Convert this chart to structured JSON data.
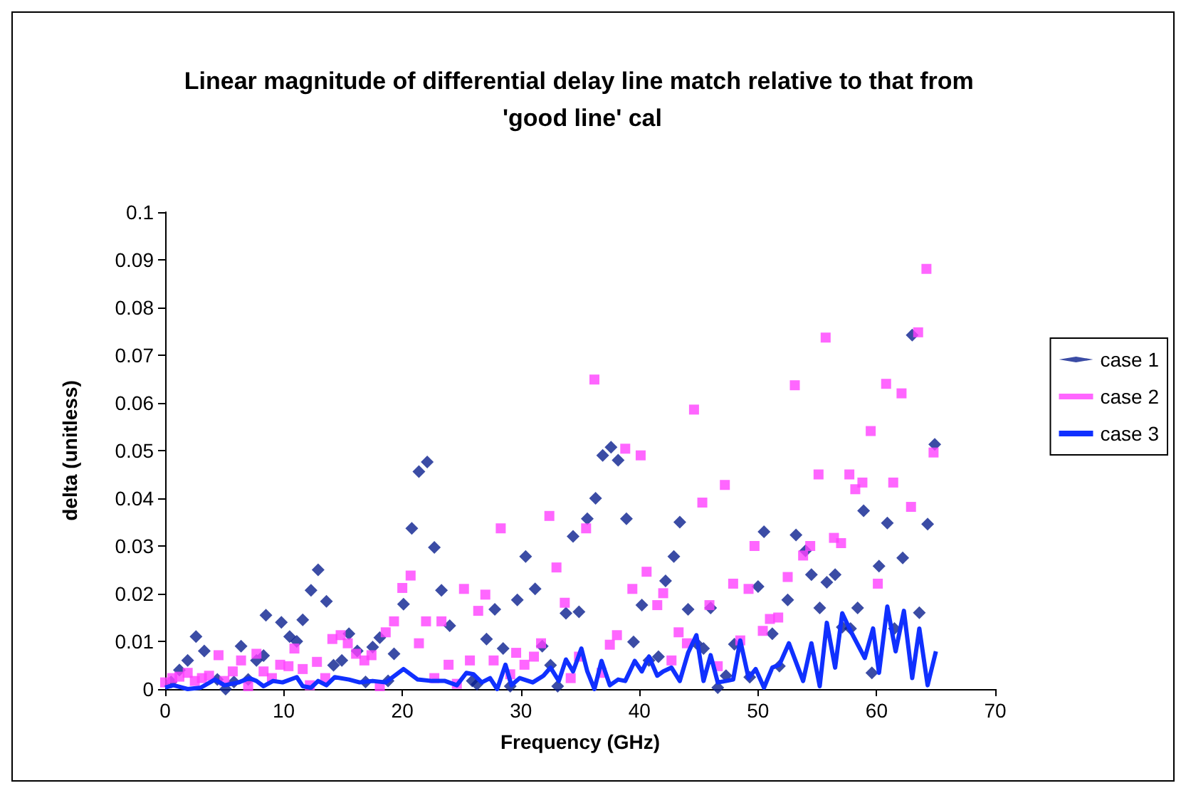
{
  "chart_data": {
    "type": "scatter",
    "title": "Linear magnitude of differential delay line match relative to that from 'good line' cal",
    "xlabel": "Frequency (GHz)",
    "ylabel": "delta (unitless)",
    "xlim": [
      0,
      70
    ],
    "xticks": [
      0,
      10,
      20,
      30,
      40,
      50,
      60,
      70
    ],
    "ylim": [
      0,
      0.1
    ],
    "yticks": [
      0,
      0.01,
      0.02,
      0.03,
      0.04,
      0.05,
      0.06,
      0.07,
      0.08,
      0.09,
      0.1
    ],
    "grid": false,
    "legend": "right",
    "series": [
      {
        "name": "case 1",
        "marker": "diamond",
        "color": "#0a1f8f",
        "x": [
          0.5,
          1.2,
          1.9,
          2.6,
          3.3,
          4.4,
          5.1,
          5.8,
          6.4,
          7.0,
          7.7,
          8.3,
          8.5,
          9.8,
          10.5,
          11.1,
          11.6,
          12.3,
          12.9,
          13.6,
          14.2,
          14.9,
          15.5,
          16.2,
          16.9,
          17.5,
          18.1,
          18.8,
          19.3,
          20.1,
          20.8,
          21.4,
          22.1,
          22.7,
          23.3,
          24.0,
          25.9,
          26.3,
          27.1,
          27.8,
          28.5,
          29.1,
          29.7,
          30.4,
          31.2,
          31.8,
          32.5,
          33.1,
          33.8,
          34.4,
          34.9,
          35.6,
          36.3,
          36.9,
          37.6,
          38.2,
          38.9,
          39.5,
          40.2,
          40.8,
          41.6,
          42.2,
          42.9,
          43.4,
          44.1,
          44.8,
          45.4,
          46.0,
          46.6,
          47.3,
          48.0,
          49.3,
          50.0,
          50.5,
          51.2,
          51.8,
          52.5,
          53.2,
          54.0,
          54.5,
          55.2,
          55.8,
          56.5,
          57.1,
          57.8,
          58.4,
          58.9,
          59.6,
          60.2,
          60.9,
          61.5,
          62.2,
          63.0,
          63.6,
          64.3,
          64.9
        ],
        "values": [
          0.0015,
          0.004,
          0.006,
          0.011,
          0.008,
          0.002,
          0.0,
          0.0015,
          0.009,
          0.002,
          0.006,
          0.007,
          0.0155,
          0.014,
          0.011,
          0.01,
          0.0145,
          0.0207,
          0.025,
          0.0184,
          0.005,
          0.006,
          0.0116,
          0.008,
          0.0015,
          0.0088,
          0.0108,
          0.0017,
          0.0074,
          0.0178,
          0.0337,
          0.0456,
          0.0476,
          0.0297,
          0.0207,
          0.0133,
          0.0017,
          0.001,
          0.0105,
          0.0167,
          0.0085,
          0.0006,
          0.0187,
          0.0278,
          0.021,
          0.009,
          0.005,
          0.0006,
          0.0159,
          0.032,
          0.0162,
          0.0357,
          0.04,
          0.049,
          0.0507,
          0.048,
          0.0357,
          0.0099,
          0.0176,
          0.006,
          0.0068,
          0.0227,
          0.0278,
          0.035,
          0.0167,
          0.0096,
          0.0085,
          0.017,
          0.0003,
          0.0028,
          0.0094,
          0.0025,
          0.0215,
          0.033,
          0.0116,
          0.0048,
          0.0187,
          0.0323,
          0.029,
          0.024,
          0.017,
          0.0224,
          0.024,
          0.013,
          0.0127,
          0.017,
          0.0374,
          0.0034,
          0.0258,
          0.0348,
          0.0127,
          0.0275,
          0.0742,
          0.016,
          0.0346,
          0.0513
        ]
      },
      {
        "name": "case 2",
        "marker": "square",
        "color": "#ff40ff",
        "x": [
          0.0,
          0.6,
          1.2,
          1.9,
          2.5,
          3.1,
          3.7,
          4.5,
          5.0,
          5.7,
          6.4,
          7.0,
          7.7,
          8.3,
          9.0,
          9.7,
          10.4,
          10.9,
          11.6,
          12.2,
          12.8,
          13.5,
          14.1,
          14.8,
          15.4,
          16.1,
          16.8,
          17.4,
          18.1,
          18.6,
          19.3,
          20.0,
          20.7,
          21.4,
          22.0,
          22.7,
          23.3,
          23.9,
          24.6,
          25.2,
          25.7,
          26.4,
          27.0,
          27.7,
          28.3,
          29.1,
          29.6,
          30.3,
          31.1,
          31.7,
          32.4,
          33.0,
          33.7,
          34.2,
          34.9,
          35.5,
          36.2,
          36.8,
          37.5,
          38.1,
          38.8,
          39.4,
          40.1,
          40.6,
          41.5,
          42.0,
          42.7,
          43.3,
          44.0,
          44.6,
          45.3,
          45.9,
          46.6,
          47.2,
          47.9,
          48.5,
          49.2,
          49.7,
          50.4,
          51.0,
          51.7,
          52.5,
          53.1,
          53.8,
          54.4,
          55.1,
          55.7,
          56.4,
          57.0,
          57.7,
          58.2,
          58.8,
          59.5,
          60.1,
          60.8,
          61.4,
          62.1,
          62.9,
          63.5,
          64.2,
          64.8
        ],
        "values": [
          0.0014,
          0.0023,
          0.0026,
          0.0034,
          0.0017,
          0.0023,
          0.0028,
          0.0071,
          0.0017,
          0.0037,
          0.006,
          0.0006,
          0.0074,
          0.0037,
          0.0023,
          0.0051,
          0.0048,
          0.0085,
          0.0042,
          0.0008,
          0.0057,
          0.0023,
          0.0105,
          0.0113,
          0.0096,
          0.0074,
          0.006,
          0.0071,
          0.0006,
          0.0119,
          0.0142,
          0.0212,
          0.0238,
          0.0096,
          0.0142,
          0.0023,
          0.0142,
          0.0051,
          0.0011,
          0.021,
          0.006,
          0.0164,
          0.0198,
          0.006,
          0.0337,
          0.0031,
          0.0076,
          0.0051,
          0.0068,
          0.0096,
          0.0363,
          0.0255,
          0.0181,
          0.0023,
          0.0068,
          0.0337,
          0.0649,
          0.0034,
          0.0093,
          0.0113,
          0.0504,
          0.021,
          0.049,
          0.0246,
          0.0176,
          0.0201,
          0.006,
          0.0119,
          0.0096,
          0.0586,
          0.0391,
          0.0176,
          0.0048,
          0.0428,
          0.0221,
          0.0102,
          0.021,
          0.03,
          0.0122,
          0.0147,
          0.015,
          0.0235,
          0.0637,
          0.028,
          0.03,
          0.045,
          0.0737,
          0.0317,
          0.0306,
          0.045,
          0.0419,
          0.0433,
          0.0541,
          0.0221,
          0.064,
          0.0433,
          0.062,
          0.0382,
          0.0748,
          0.0881,
          0.0496
        ]
      },
      {
        "name": "case 3",
        "type": "line",
        "marker": "none",
        "color": "#1030ff",
        "x": [
          0,
          0.7,
          1.9,
          3.0,
          4.2,
          5.0,
          6.2,
          7.1,
          7.7,
          8.3,
          9.1,
          9.9,
          11.1,
          11.6,
          12.3,
          12.9,
          13.6,
          14.3,
          15.5,
          16.4,
          17.5,
          18.6,
          20.1,
          21.3,
          22.5,
          23.6,
          24.6,
          25.4,
          26.0,
          26.7,
          27.4,
          28.0,
          28.7,
          29.2,
          29.9,
          31.0,
          31.9,
          32.5,
          33.2,
          33.8,
          34.4,
          35.1,
          35.6,
          36.2,
          36.8,
          37.5,
          38.2,
          38.8,
          39.6,
          40.2,
          40.8,
          41.5,
          42.0,
          42.7,
          43.4,
          44.1,
          44.8,
          45.4,
          46.0,
          46.6,
          47.3,
          47.9,
          48.5,
          49.2,
          49.8,
          50.5,
          51.2,
          51.8,
          52.6,
          53.8,
          54.5,
          55.2,
          55.8,
          56.5,
          57.1,
          57.8,
          59.0,
          59.7,
          60.2,
          60.9,
          61.6,
          62.3,
          63.0,
          63.6,
          64.3,
          65.0
        ],
        "values": [
          0.0003,
          0.0008,
          0.0,
          0.0003,
          0.002,
          0.0008,
          0.0014,
          0.0023,
          0.0017,
          0.0006,
          0.0017,
          0.0014,
          0.0025,
          0.0006,
          0.0003,
          0.0017,
          0.0008,
          0.0025,
          0.002,
          0.0014,
          0.0017,
          0.0014,
          0.0042,
          0.002,
          0.0017,
          0.0017,
          0.0008,
          0.0034,
          0.0031,
          0.0014,
          0.0023,
          0.0,
          0.0051,
          0.0008,
          0.0023,
          0.0014,
          0.0028,
          0.0045,
          0.0017,
          0.0062,
          0.0037,
          0.0085,
          0.0037,
          0.0,
          0.0059,
          0.0008,
          0.002,
          0.0017,
          0.0059,
          0.0037,
          0.0068,
          0.0028,
          0.0037,
          0.0045,
          0.0017,
          0.0076,
          0.0113,
          0.0017,
          0.0071,
          0.0014,
          0.0017,
          0.002,
          0.0102,
          0.0023,
          0.0042,
          0.0003,
          0.0045,
          0.0051,
          0.0096,
          0.0017,
          0.0096,
          0.0006,
          0.0139,
          0.0045,
          0.0159,
          0.0122,
          0.0065,
          0.0127,
          0.0034,
          0.0173,
          0.0079,
          0.0164,
          0.0023,
          0.0127,
          0.0008,
          0.0079
        ]
      }
    ]
  }
}
